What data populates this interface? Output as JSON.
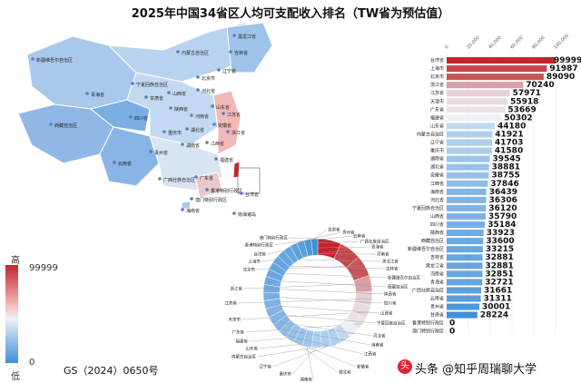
{
  "title": "2025年中国34省区人均可支配收入排名（TW省为预估值）",
  "map": {
    "labels": [
      "黑龙江省",
      "吉林省",
      "新疆维吾尔自治区",
      "内蒙古自治区",
      "辽宁省",
      "北京市",
      "宁夏回族自治区",
      "山西省",
      "河北省",
      "青海省",
      "甘肃省",
      "陕西省",
      "山东省",
      "西藏自治区",
      "江苏省",
      "河南省",
      "四川省",
      "湖北省",
      "安徽省",
      "重庆市",
      "浙江省",
      "湖南省",
      "江西省",
      "贵州省",
      "福建省",
      "云南省",
      "广东省",
      "广西壮族自治区",
      "香港特别行政区",
      "台湾省",
      "海南省",
      "澳门特别行政区",
      "南海诸岛"
    ],
    "legend_high": "高",
    "legend_low": "低",
    "legend_max": "99999",
    "legend_min": "0",
    "gs_note": "GS（2024）0650号",
    "colors": {
      "high": "#c0262d",
      "mid": "#eef2f8",
      "low": "#3f8fd8"
    }
  },
  "chart_data": {
    "type": "bar",
    "orientation": "horizontal",
    "xlim": [
      0,
      100000
    ],
    "ticks": [
      0,
      20000,
      40000,
      60000,
      80000,
      100000
    ],
    "tick_labels": [
      "0",
      "20,000",
      "40,000",
      "60,000",
      "80,000",
      "100,000"
    ],
    "categories": [
      "台湾省",
      "上海市",
      "北京市",
      "浙江省",
      "江苏省",
      "天津市",
      "广东省",
      "福建省",
      "山东省",
      "内蒙古自治区",
      "辽宁省",
      "重庆市",
      "湖南省",
      "湖北省",
      "安徽省",
      "江西省",
      "海南省",
      "河北省",
      "宁夏回族自治区",
      "山西省",
      "四川省",
      "陕西省",
      "西藏自治区",
      "新疆维吾尔自治区",
      "吉林省",
      "黑龙江省",
      "河南省",
      "青海省",
      "广西壮族自治区",
      "云南省",
      "贵州省",
      "甘肃省",
      "香港特别行政区",
      "澳门特别行政区"
    ],
    "values": [
      99999,
      91987,
      89090,
      70240,
      57971,
      55918,
      53669,
      50302,
      44180,
      41921,
      41703,
      41580,
      39545,
      38881,
      38755,
      37846,
      36439,
      36306,
      36120,
      35790,
      35184,
      33923,
      33600,
      33215,
      32881,
      32881,
      32851,
      32721,
      31661,
      31311,
      30001,
      28224,
      0,
      0
    ],
    "donut": {
      "type": "pie",
      "labels": [
        "澳门特别行政区",
        "香港特别行政区",
        "台湾省",
        "上海市",
        "北京市",
        "浙江省",
        "江苏省",
        "天津市",
        "广东省",
        "福建省",
        "山东省",
        "内蒙古自治区",
        "辽宁省",
        "重庆市",
        "湖南省",
        "湖北省",
        "安徽省",
        "江西省",
        "海南省",
        "河北省",
        "宁夏回族自治区",
        "山西省",
        "四川省",
        "陕西省",
        "西藏自治区",
        "新疆维吾尔自治区",
        "吉林省",
        "黑龙江省",
        "河南省",
        "青海省",
        "广西壮族自治区",
        "云南省",
        "贵州省",
        "甘肃省"
      ],
      "values": [
        0,
        0,
        99999,
        91987,
        89090,
        70240,
        57971,
        55918,
        53669,
        50302,
        44180,
        41921,
        41703,
        41580,
        39545,
        38881,
        38755,
        37846,
        36439,
        36306,
        36120,
        35790,
        35184,
        33923,
        33600,
        33215,
        32881,
        32881,
        32851,
        32721,
        31661,
        31311,
        30001,
        28224
      ]
    }
  },
  "footer": {
    "text": "头条 @知乎周瑞聊大学",
    "logo": "头"
  }
}
